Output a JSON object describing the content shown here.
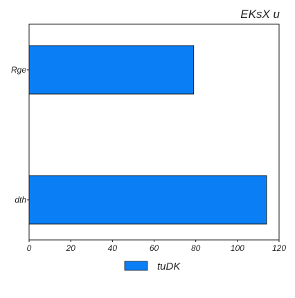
{
  "chart_data": {
    "type": "bar",
    "orientation": "horizontal",
    "title": "EKsX u",
    "xlabel": "",
    "ylabel": "",
    "categories": [
      "Rge",
      "dth"
    ],
    "series": [
      {
        "name": "tuDK",
        "values": [
          79,
          114
        ]
      }
    ],
    "xlim": [
      0,
      120
    ],
    "xticks": [
      "0",
      "20",
      "40",
      "60",
      "80",
      "100",
      "120"
    ],
    "grid": false,
    "legend_position": "bottom-center",
    "colors": {
      "bar_fill": "#0a7ff5",
      "bar_edge": "#1a1a1a",
      "axes_edge": "#1a1a1a",
      "text": "#222222"
    }
  }
}
